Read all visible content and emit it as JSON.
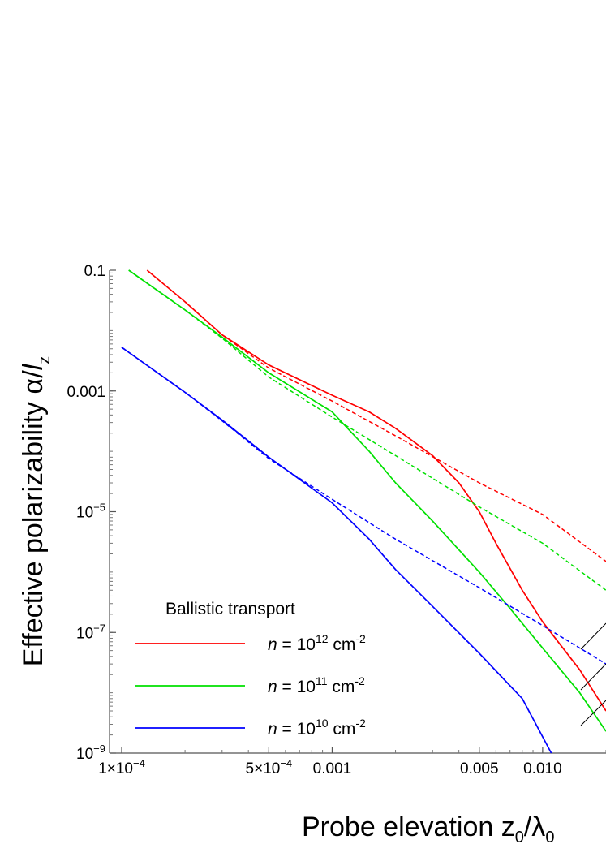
{
  "chart_data": {
    "type": "line",
    "title": "",
    "x_scale": "log",
    "y_scale": "log",
    "xlim": [
      0.0001,
      0.02
    ],
    "ylim": [
      1e-09,
      0.1
    ],
    "grid": false,
    "xlabel": {
      "main": "Probe elevation z",
      "sub1": "0",
      "mid": "/λ",
      "sub2": "0"
    },
    "ylabel": {
      "main": "Effective polarizability α/",
      "italic": "l",
      "sub": "z"
    },
    "x_ticks": [
      {
        "value": 0.0001,
        "mant": "1",
        "exp": "−4"
      },
      {
        "value": 0.0005,
        "mant": "5",
        "exp": "−4"
      },
      {
        "value": 0.001,
        "label": "0.001"
      },
      {
        "value": 0.005,
        "label": "0.005"
      },
      {
        "value": 0.01,
        "label": "0.010"
      }
    ],
    "y_ticks": [
      {
        "value": 0.1,
        "label": "0.1"
      },
      {
        "value": 0.001,
        "label": "0.001"
      },
      {
        "value": 1e-05,
        "mant": "10",
        "exp": "−5"
      },
      {
        "value": 1e-07,
        "mant": "10",
        "exp": "−7"
      },
      {
        "value": 1e-09,
        "mant": "10",
        "exp": "−9"
      }
    ],
    "legend": {
      "title": "Ballistic transport",
      "placement": "bottom-left",
      "entries": [
        {
          "color": "#ff0000",
          "prefix": "n",
          "mid": " = 10",
          "exp": "12",
          "unit": " cm",
          "unit_exp": "-2"
        },
        {
          "color": "#00e000",
          "prefix": "n",
          "mid": " = 10",
          "exp": "11",
          "unit": " cm",
          "unit_exp": "-2"
        },
        {
          "color": "#0000ff",
          "prefix": "n",
          "mid": " = 10",
          "exp": "10",
          "unit": " cm",
          "unit_exp": "-2"
        }
      ]
    },
    "series": [
      {
        "key": "n12_ballistic",
        "color": "#ff0000",
        "style": "solid",
        "points": [
          [
            0.000132,
            0.1
          ],
          [
            0.0002,
            0.03
          ],
          [
            0.0003,
            0.0085
          ],
          [
            0.0005,
            0.0027
          ],
          [
            0.001,
            0.00085
          ],
          [
            0.0015,
            0.00045
          ],
          [
            0.002,
            0.00024
          ],
          [
            0.003,
            8.5e-05
          ],
          [
            0.004,
            3e-05
          ],
          [
            0.005,
            1e-05
          ],
          [
            0.006,
            3e-06
          ],
          [
            0.008,
            5e-07
          ],
          [
            0.01,
            1.5e-07
          ],
          [
            0.015,
            2.4e-08
          ],
          [
            0.02,
            5e-09
          ]
        ]
      },
      {
        "key": "n12_asymptote",
        "color": "#ff0000",
        "style": "dashed",
        "points": [
          [
            0.0002,
            0.03
          ],
          [
            0.0003,
            0.0085
          ],
          [
            0.0005,
            0.0024
          ],
          [
            0.001,
            0.00068
          ],
          [
            0.002,
            0.00018
          ],
          [
            0.005,
            3e-05
          ],
          [
            0.01,
            9e-06
          ],
          [
            0.02,
            1.5e-06
          ]
        ]
      },
      {
        "key": "n11_ballistic",
        "color": "#00e000",
        "style": "solid",
        "points": [
          [
            0.000108,
            0.1
          ],
          [
            0.0002,
            0.022
          ],
          [
            0.0003,
            0.0078
          ],
          [
            0.0005,
            0.002
          ],
          [
            0.001,
            0.00045
          ],
          [
            0.0015,
            0.0001
          ],
          [
            0.002,
            3e-05
          ],
          [
            0.003,
            7e-06
          ],
          [
            0.005,
            1e-06
          ],
          [
            0.007,
            2.5e-07
          ],
          [
            0.01,
            5.5e-08
          ],
          [
            0.015,
            1e-08
          ],
          [
            0.02,
            2.3e-09
          ]
        ]
      },
      {
        "key": "n11_asymptote",
        "color": "#00e000",
        "style": "dashed",
        "points": [
          [
            0.000108,
            0.1
          ],
          [
            0.0002,
            0.022
          ],
          [
            0.0003,
            0.0075
          ],
          [
            0.0005,
            0.0017
          ],
          [
            0.001,
            0.00037
          ],
          [
            0.002,
            8.5e-05
          ],
          [
            0.005,
            1.2e-05
          ],
          [
            0.01,
            3e-06
          ],
          [
            0.02,
            5e-07
          ]
        ]
      },
      {
        "key": "n10_ballistic",
        "color": "#0000ff",
        "style": "solid",
        "points": [
          [
            0.0001,
            0.0053
          ],
          [
            0.0002,
            0.00095
          ],
          [
            0.0003,
            0.00033
          ],
          [
            0.0005,
            8e-05
          ],
          [
            0.001,
            1.4e-05
          ],
          [
            0.0015,
            3.5e-06
          ],
          [
            0.002,
            1.1e-06
          ],
          [
            0.003,
            2.7e-07
          ],
          [
            0.005,
            4.5e-08
          ],
          [
            0.008,
            8e-09
          ],
          [
            0.011,
            1e-09
          ]
        ]
      },
      {
        "key": "n10_asymptote",
        "color": "#0000ff",
        "style": "dashed",
        "points": [
          [
            0.0001,
            0.0053
          ],
          [
            0.0002,
            0.00095
          ],
          [
            0.0003,
            0.00032
          ],
          [
            0.0005,
            7.6e-05
          ],
          [
            0.001,
            1.6e-05
          ],
          [
            0.002,
            3.5e-06
          ],
          [
            0.005,
            5.5e-07
          ],
          [
            0.01,
            1.3e-07
          ],
          [
            0.02,
            3e-08
          ]
        ]
      }
    ]
  }
}
